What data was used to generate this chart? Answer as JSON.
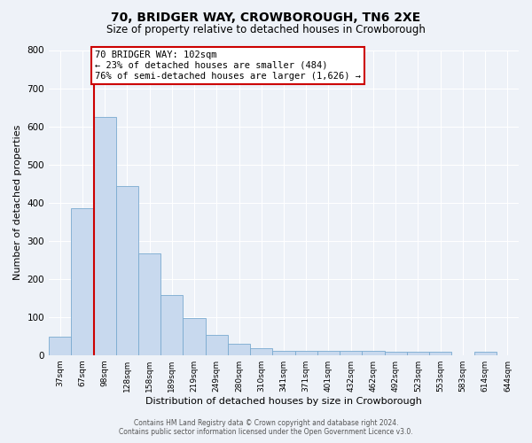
{
  "title": "70, BRIDGER WAY, CROWBOROUGH, TN6 2XE",
  "subtitle": "Size of property relative to detached houses in Crowborough",
  "xlabel": "Distribution of detached houses by size in Crowborough",
  "ylabel": "Number of detached properties",
  "categories": [
    "37sqm",
    "67sqm",
    "98sqm",
    "128sqm",
    "158sqm",
    "189sqm",
    "219sqm",
    "249sqm",
    "280sqm",
    "310sqm",
    "341sqm",
    "371sqm",
    "401sqm",
    "432sqm",
    "462sqm",
    "492sqm",
    "523sqm",
    "553sqm",
    "583sqm",
    "614sqm",
    "644sqm"
  ],
  "values": [
    48,
    385,
    625,
    443,
    267,
    157,
    97,
    52,
    30,
    17,
    12,
    12,
    12,
    12,
    10,
    8,
    8,
    8,
    0,
    8,
    0
  ],
  "bar_color": "#c8d9ee",
  "bar_edge_color": "#7aaad0",
  "red_line_x": 1.5,
  "red_line_label": "70 BRIDGER WAY: 102sqm",
  "annotation_line1": "← 23% of detached houses are smaller (484)",
  "annotation_line2": "76% of semi-detached houses are larger (1,626) →",
  "box_facecolor": "#ffffff",
  "box_edgecolor": "#cc0000",
  "ylim": [
    0,
    800
  ],
  "yticks": [
    0,
    100,
    200,
    300,
    400,
    500,
    600,
    700,
    800
  ],
  "background_color": "#eef2f8",
  "grid_color": "#ffffff",
  "title_fontsize": 10,
  "subtitle_fontsize": 8.5,
  "ylabel_fontsize": 8,
  "xlabel_fontsize": 8,
  "footer_line1": "Contains HM Land Registry data © Crown copyright and database right 2024.",
  "footer_line2": "Contains public sector information licensed under the Open Government Licence v3.0."
}
